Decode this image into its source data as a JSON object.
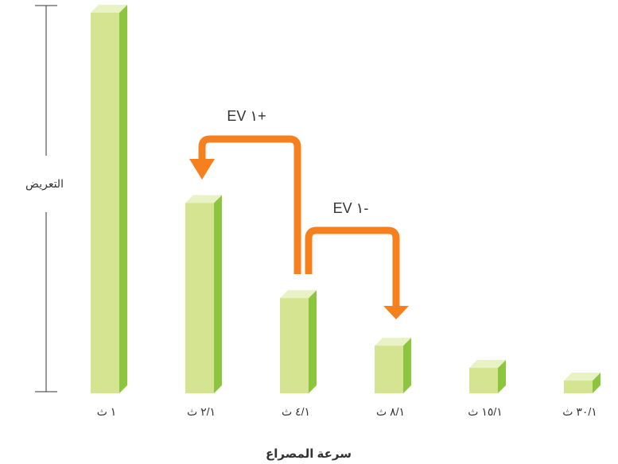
{
  "chart_data": {
    "type": "bar",
    "title": "",
    "xlabel": "سرعة المصراع",
    "ylabel": "التعريض",
    "categories": [
      "١ ث",
      "٢/١ ث",
      "٤/١ ث",
      "٨/١ ث",
      "١٥/١ ث",
      "٣٠/١ ث"
    ],
    "values": [
      1,
      0.5,
      0.25,
      0.125,
      0.0667,
      0.0333
    ],
    "ylim": [
      0,
      1
    ],
    "grid": false,
    "legend": "none",
    "annotations": [
      {
        "text": "EV ١+",
        "from": "٤/١ ث",
        "to": "٢/١ ث"
      },
      {
        "text": "EV ١-",
        "from": "٤/١ ث",
        "to": "٨/١ ث"
      }
    ]
  },
  "colors": {
    "bar_front": "#d4e491",
    "bar_top": "#e9f2c4",
    "bar_side": "#8cc63f",
    "arrow": "#f7801e",
    "axis": "#333333"
  }
}
